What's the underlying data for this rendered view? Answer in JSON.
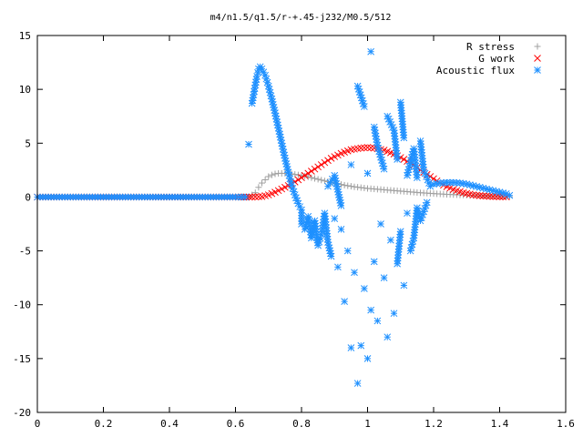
{
  "chart_data": {
    "type": "scatter",
    "title": "m4/n1.5/q1.5/r-+.45-j232/M0.5/512",
    "xlabel": "",
    "ylabel": "",
    "xlim": [
      0,
      1.6
    ],
    "ylim": [
      -20,
      15
    ],
    "x_ticks": [
      "0",
      "0.2",
      "0.4",
      "0.6",
      "0.8",
      "1",
      "1.2",
      "1.4",
      "1.6"
    ],
    "y_ticks": [
      "15",
      "10",
      "5",
      "0",
      "-5",
      "-10",
      "-15",
      "-20"
    ],
    "grid": false,
    "legend_position": "top-right",
    "series": [
      {
        "name": "R stress",
        "marker": "plus",
        "color": "#a0a0a0",
        "points": [
          [
            0.0,
            0
          ],
          [
            0.1,
            0
          ],
          [
            0.2,
            0
          ],
          [
            0.3,
            0
          ],
          [
            0.4,
            0
          ],
          [
            0.5,
            0
          ],
          [
            0.6,
            0
          ],
          [
            0.64,
            0
          ],
          [
            0.66,
            0.4
          ],
          [
            0.67,
            0.9
          ],
          [
            0.68,
            1.3
          ],
          [
            0.69,
            1.6
          ],
          [
            0.7,
            1.9
          ],
          [
            0.71,
            2.05
          ],
          [
            0.72,
            2.15
          ],
          [
            0.73,
            2.2
          ],
          [
            0.74,
            2.2
          ],
          [
            0.75,
            2.2
          ],
          [
            0.77,
            2.15
          ],
          [
            0.79,
            2.05
          ],
          [
            0.81,
            1.95
          ],
          [
            0.83,
            1.8
          ],
          [
            0.85,
            1.65
          ],
          [
            0.87,
            1.5
          ],
          [
            0.9,
            1.3
          ],
          [
            0.93,
            1.1
          ],
          [
            0.96,
            0.95
          ],
          [
            1.0,
            0.8
          ],
          [
            1.04,
            0.7
          ],
          [
            1.08,
            0.6
          ],
          [
            1.12,
            0.5
          ],
          [
            1.16,
            0.4
          ],
          [
            1.2,
            0.32
          ],
          [
            1.24,
            0.25
          ],
          [
            1.28,
            0.2
          ],
          [
            1.32,
            0.15
          ],
          [
            1.36,
            0.1
          ],
          [
            1.4,
            0.06
          ],
          [
            1.43,
            0.03
          ]
        ]
      },
      {
        "name": "G work",
        "marker": "cross",
        "color": "#ff0000",
        "points": [
          [
            0.0,
            0
          ],
          [
            0.1,
            0
          ],
          [
            0.2,
            0
          ],
          [
            0.3,
            0
          ],
          [
            0.4,
            0
          ],
          [
            0.5,
            0
          ],
          [
            0.6,
            0
          ],
          [
            0.65,
            0
          ],
          [
            0.68,
            0.05
          ],
          [
            0.7,
            0.2
          ],
          [
            0.72,
            0.45
          ],
          [
            0.75,
            0.9
          ],
          [
            0.78,
            1.4
          ],
          [
            0.8,
            1.8
          ],
          [
            0.83,
            2.4
          ],
          [
            0.86,
            3.0
          ],
          [
            0.89,
            3.6
          ],
          [
            0.92,
            4.05
          ],
          [
            0.95,
            4.4
          ],
          [
            0.98,
            4.55
          ],
          [
            1.0,
            4.6
          ],
          [
            1.02,
            4.55
          ],
          [
            1.05,
            4.35
          ],
          [
            1.08,
            4.0
          ],
          [
            1.11,
            3.5
          ],
          [
            1.14,
            2.95
          ],
          [
            1.17,
            2.3
          ],
          [
            1.2,
            1.7
          ],
          [
            1.23,
            1.1
          ],
          [
            1.26,
            0.7
          ],
          [
            1.29,
            0.4
          ],
          [
            1.32,
            0.2
          ],
          [
            1.35,
            0.1
          ],
          [
            1.38,
            0.05
          ],
          [
            1.42,
            0.02
          ]
        ]
      },
      {
        "name": "Acoustic flux",
        "marker": "star",
        "color": "#1e90ff",
        "points": [
          [
            0.0,
            0
          ],
          [
            0.1,
            0
          ],
          [
            0.2,
            0
          ],
          [
            0.3,
            0
          ],
          [
            0.4,
            0
          ],
          [
            0.5,
            0
          ],
          [
            0.6,
            0
          ],
          [
            0.63,
            0
          ],
          [
            0.64,
            4.9
          ],
          [
            0.65,
            8.7
          ],
          [
            0.655,
            9.5
          ],
          [
            0.66,
            10.4
          ],
          [
            0.665,
            11.2
          ],
          [
            0.67,
            11.9
          ],
          [
            0.675,
            12.1
          ],
          [
            0.68,
            11.9
          ],
          [
            0.69,
            11.3
          ],
          [
            0.7,
            10.3
          ],
          [
            0.71,
            9.1
          ],
          [
            0.72,
            7.8
          ],
          [
            0.73,
            6.4
          ],
          [
            0.74,
            5.0
          ],
          [
            0.75,
            3.6
          ],
          [
            0.76,
            2.3
          ],
          [
            0.77,
            1.1
          ],
          [
            0.78,
            0.2
          ],
          [
            0.79,
            -0.6
          ],
          [
            0.8,
            -1.2
          ],
          [
            0.8,
            -2.5
          ],
          [
            0.81,
            -3.0
          ],
          [
            0.82,
            -1.8
          ],
          [
            0.83,
            -3.8
          ],
          [
            0.84,
            -2.2
          ],
          [
            0.85,
            -4.5
          ],
          [
            0.86,
            -3.5
          ],
          [
            0.87,
            -1.5
          ],
          [
            0.88,
            -4.2
          ],
          [
            0.89,
            -5.5
          ],
          [
            0.9,
            -2.0
          ],
          [
            0.91,
            -6.5
          ],
          [
            0.92,
            -3.0
          ],
          [
            0.93,
            -9.7
          ],
          [
            0.94,
            -5.0
          ],
          [
            0.95,
            -14.0
          ],
          [
            0.96,
            -7.0
          ],
          [
            0.97,
            -17.3
          ],
          [
            0.98,
            -13.8
          ],
          [
            0.99,
            -8.5
          ],
          [
            1.0,
            -15.0
          ],
          [
            1.01,
            -10.5
          ],
          [
            1.02,
            -6.0
          ],
          [
            1.03,
            -11.5
          ],
          [
            1.04,
            -2.5
          ],
          [
            1.05,
            -7.5
          ],
          [
            1.06,
            -13.0
          ],
          [
            1.07,
            -4.0
          ],
          [
            1.08,
            -10.8
          ],
          [
            1.09,
            -6.2
          ],
          [
            1.1,
            -3.2
          ],
          [
            1.11,
            -8.2
          ],
          [
            1.12,
            -1.5
          ],
          [
            1.13,
            -5.0
          ],
          [
            1.14,
            -3.8
          ],
          [
            1.15,
            -1.0
          ],
          [
            1.16,
            -2.2
          ],
          [
            1.18,
            -0.5
          ],
          [
            0.88,
            1.0
          ],
          [
            0.9,
            2.0
          ],
          [
            0.92,
            -0.8
          ],
          [
            0.95,
            3.0
          ],
          [
            0.97,
            10.3
          ],
          [
            0.99,
            8.4
          ],
          [
            1.0,
            2.2
          ],
          [
            1.01,
            13.5
          ],
          [
            1.02,
            6.5
          ],
          [
            1.03,
            4.8
          ],
          [
            1.05,
            2.6
          ],
          [
            1.06,
            7.5
          ],
          [
            1.08,
            6.2
          ],
          [
            1.09,
            3.5
          ],
          [
            1.1,
            8.8
          ],
          [
            1.11,
            5.5
          ],
          [
            1.12,
            2.0
          ],
          [
            1.14,
            4.5
          ],
          [
            1.15,
            1.8
          ],
          [
            1.16,
            5.2
          ],
          [
            1.17,
            2.5
          ],
          [
            1.19,
            1.0
          ],
          [
            1.2,
            1.2
          ],
          [
            1.22,
            1.3
          ],
          [
            1.24,
            1.35
          ],
          [
            1.26,
            1.35
          ],
          [
            1.28,
            1.3
          ],
          [
            1.3,
            1.2
          ],
          [
            1.32,
            1.05
          ],
          [
            1.34,
            0.9
          ],
          [
            1.36,
            0.75
          ],
          [
            1.38,
            0.6
          ],
          [
            1.4,
            0.45
          ],
          [
            1.42,
            0.3
          ],
          [
            1.43,
            0.15
          ]
        ]
      }
    ]
  }
}
